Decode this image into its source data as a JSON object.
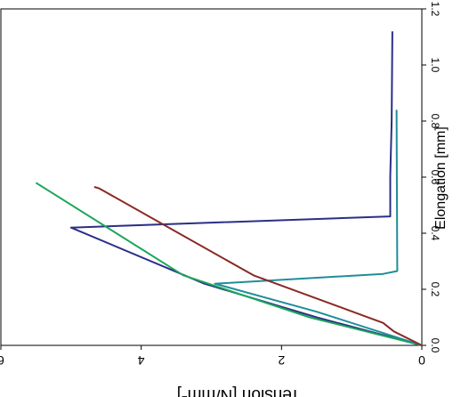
{
  "chart_data": {
    "type": "line",
    "x_axis": {
      "label_text": "Elongation  [mm]",
      "range": [
        0,
        1.2
      ],
      "ticks": [
        "0.0",
        "0.2",
        "0.4",
        "0.6",
        "0.8",
        "1.0",
        "1.2"
      ]
    },
    "y_axis": {
      "label_main": "Tension  [N/mm",
      "label_exp": "2",
      "label_close": "]",
      "range": [
        0,
        6
      ],
      "ticks": [
        "0",
        "2",
        "4",
        "6"
      ]
    },
    "grid": false,
    "series": [
      {
        "color": "#2b2f86",
        "points": [
          [
            0,
            0
          ],
          [
            0.1,
            1.5
          ],
          [
            0.22,
            3.1
          ],
          [
            0.42,
            5.0
          ],
          [
            0.46,
            0.45
          ],
          [
            0.6,
            0.45
          ],
          [
            0.8,
            0.43
          ],
          [
            1.12,
            0.42
          ]
        ]
      },
      {
        "color": "#1aa65a",
        "points": [
          [
            0,
            0
          ],
          [
            0.1,
            1.6
          ],
          [
            0.25,
            3.4
          ],
          [
            0.58,
            5.5
          ]
        ]
      },
      {
        "color": "#1f8e9a",
        "points": [
          [
            0,
            0
          ],
          [
            0.12,
            1.5
          ],
          [
            0.22,
            2.95
          ],
          [
            0.255,
            0.55
          ],
          [
            0.265,
            0.35
          ],
          [
            0.84,
            0.36
          ]
        ]
      },
      {
        "color": "#8a2a24",
        "points": [
          [
            0,
            0
          ],
          [
            0.05,
            0.4
          ],
          [
            0.08,
            0.55
          ],
          [
            0.25,
            2.4
          ],
          [
            0.56,
            4.6
          ],
          [
            0.565,
            4.67
          ]
        ]
      }
    ]
  }
}
